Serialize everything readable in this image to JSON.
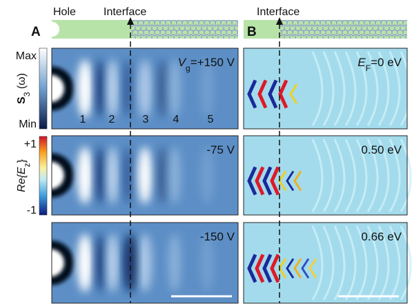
{
  "panel_a": {
    "label": "A",
    "hole": "Hole",
    "interface": "Interface",
    "maps": [
      {
        "main": "V",
        "sub": "g",
        "rest": "=+150 V"
      },
      {
        "text": "-75 V"
      },
      {
        "text": "-150 V"
      }
    ],
    "fringe_labels": [
      "1",
      "2",
      "3",
      "4",
      "5"
    ]
  },
  "panel_b": {
    "label": "B",
    "interface": "Interface",
    "maps": [
      {
        "main": "E",
        "sub": "F",
        "rest": "=0 eV"
      },
      {
        "text": "0.50 eV"
      },
      {
        "text": "0.66 eV"
      }
    ]
  },
  "colorbars": [
    {
      "max": "Max",
      "min": "Min",
      "title": {
        "main": "S",
        "sub": "3",
        "rest": " (ω)"
      }
    },
    {
      "max": "+1",
      "min": "-1",
      "title": {
        "main": "Re{E",
        "sub": "z",
        "rest": "}"
      }
    }
  ]
}
